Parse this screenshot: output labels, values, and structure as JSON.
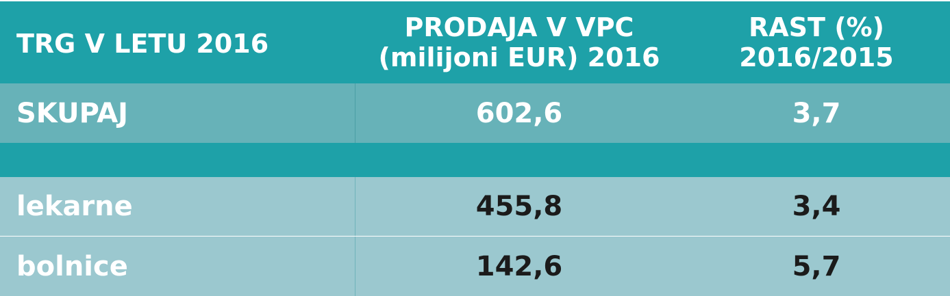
{
  "chart_data": {
    "type": "table",
    "columns": [
      "TRG V LETU 2016",
      [
        "PRODAJA V VPC",
        "(milijoni EUR) 2016"
      ],
      [
        "RAST (%)",
        "2016/2015"
      ]
    ],
    "rows": [
      {
        "label": "SKUPAJ",
        "sales": "602,6",
        "growth": "3,7"
      },
      {
        "label": "lekarne",
        "sales": "455,8",
        "growth": "3,4"
      },
      {
        "label": "bolnice",
        "sales": "142,6",
        "growth": "5,7"
      }
    ]
  },
  "colors": {
    "header_bg": "#1ea1a8",
    "total_bg": "#67b2b8",
    "row_bg": "#9bc8cf",
    "header_text": "#ffffff",
    "value_text": "#1b1b1b"
  }
}
